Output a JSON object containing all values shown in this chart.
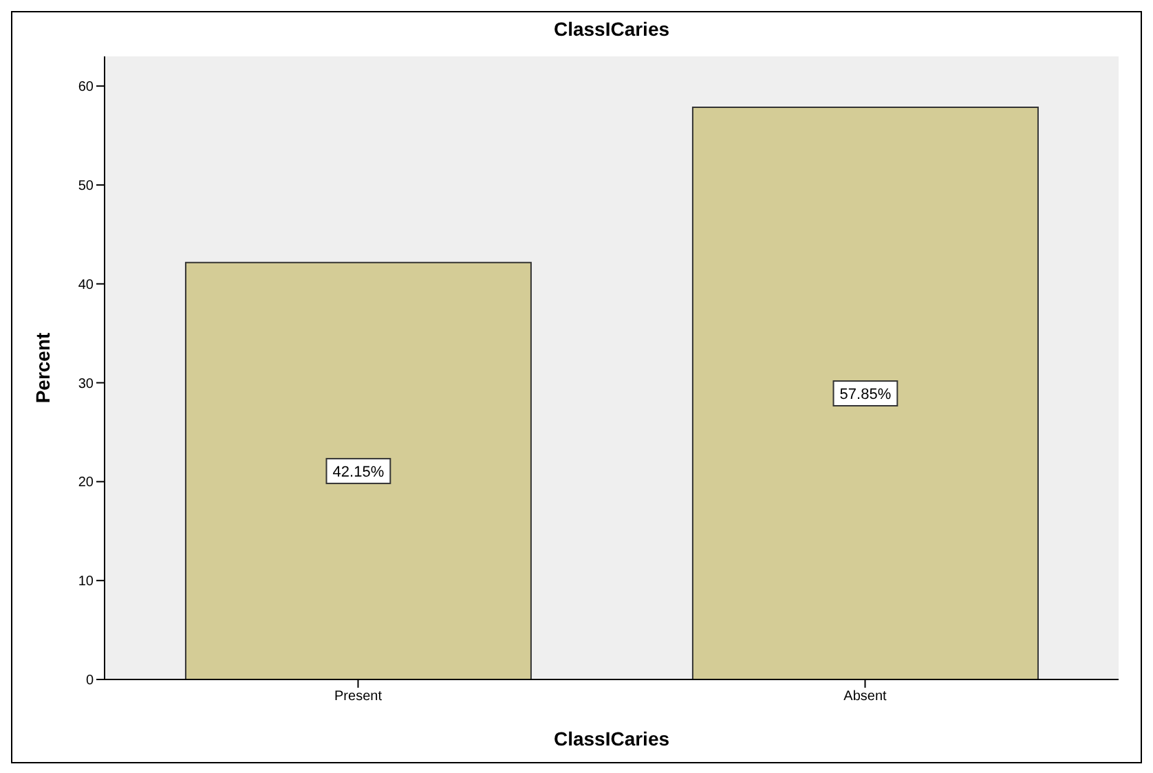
{
  "chart_data": {
    "type": "bar",
    "title": "ClassICaries",
    "xlabel": "ClassICaries",
    "ylabel": "Percent",
    "categories": [
      "Present",
      "Absent"
    ],
    "values": [
      42.15,
      57.85
    ],
    "value_labels": [
      "42.15%",
      "57.85%"
    ],
    "color": "#d4cc96",
    "ylim": [
      0,
      63
    ],
    "yticks": [
      0,
      10,
      20,
      30,
      40,
      50,
      60
    ]
  }
}
